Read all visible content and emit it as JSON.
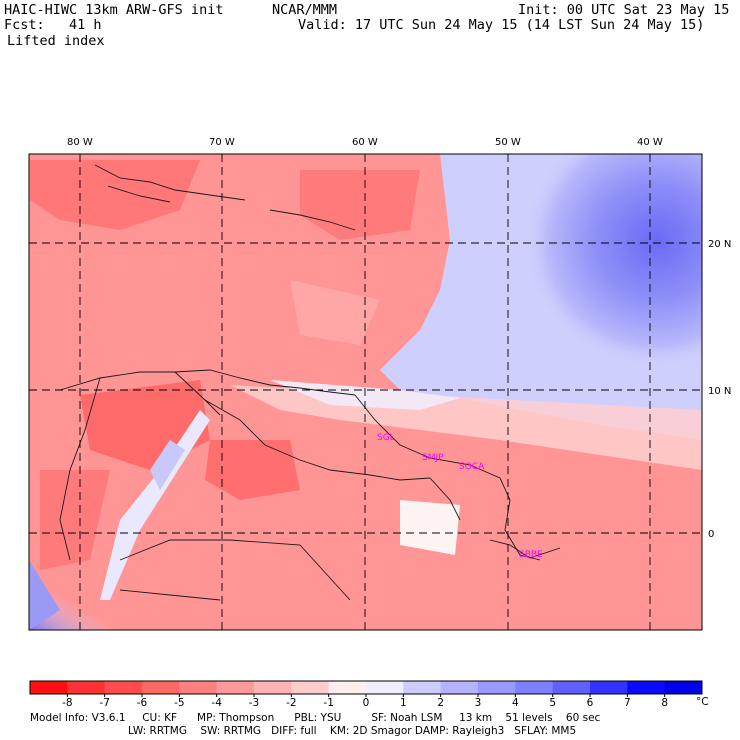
{
  "header": {
    "model": "HAIC-HIWC 13km ARW-GFS init",
    "center": "NCAR/MMM",
    "init": "Init: 00 UTC Sat 23 May 15",
    "fcst": "Fcst:   41 h",
    "valid": "Valid: 17 UTC Sun 24 May 15 (14 LST Sun 24 May 15)",
    "field": "Lifted index"
  },
  "map": {
    "lon_labels": [
      "80 W",
      "70 W",
      "60 W",
      "50 W",
      "40 W"
    ],
    "lat_labels": [
      "20 N",
      "10 N",
      "0"
    ],
    "stations": [
      "SGL",
      "SMJP",
      "SOCA",
      "SBBE"
    ]
  },
  "colorbar": {
    "unit": "°C",
    "levels": [
      "-8",
      "-7",
      "-6",
      "-5",
      "-4",
      "-3",
      "-2",
      "-1",
      "0",
      "1",
      "2",
      "3",
      "4",
      "5",
      "6",
      "7",
      "8"
    ],
    "colors": [
      "#ff1010",
      "#ff3333",
      "#ff4d4d",
      "#ff6666",
      "#ff8080",
      "#ff9999",
      "#ffb3b3",
      "#ffcccc",
      "#ffeeee",
      "#eeeeff",
      "#ccccff",
      "#b3b3ff",
      "#9999ff",
      "#8080ff",
      "#6060ff",
      "#3333ff",
      "#0a0aff",
      "#0000e6"
    ]
  },
  "footer": {
    "line1": "Model Info: V3.6.1     CU: KF      MP: Thompson      PBL: YSU         SF: Noah LSM     13 km    51 levels    60 sec",
    "line2": "LW: RRTMG    SW: RRTMG   DIFF: full    KM: 2D Smagor DAMP: Rayleigh3   SFLAY: MM5"
  }
}
